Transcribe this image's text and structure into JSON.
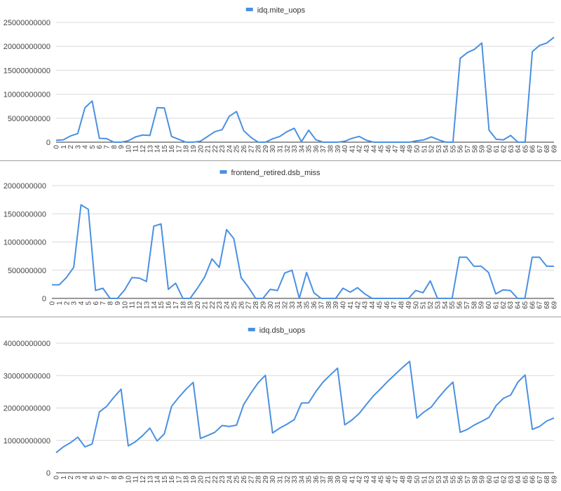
{
  "chart_data": [
    {
      "type": "line",
      "x": [
        0,
        1,
        2,
        3,
        4,
        5,
        6,
        7,
        8,
        9,
        10,
        11,
        12,
        13,
        14,
        15,
        16,
        17,
        18,
        19,
        20,
        21,
        22,
        23,
        24,
        25,
        26,
        27,
        28,
        29,
        30,
        31,
        32,
        33,
        34,
        35,
        36,
        37,
        38,
        39,
        40,
        41,
        42,
        43,
        44,
        45,
        46,
        47,
        48,
        49,
        50,
        51,
        52,
        53,
        54,
        55,
        56,
        57,
        58,
        59,
        60,
        61,
        62,
        63,
        64,
        65,
        66,
        67,
        68,
        69
      ],
      "series": [
        {
          "name": "idq.mite_uops",
          "color": "#4a90e2",
          "values": [
            400000000,
            500000000,
            1300000000,
            1800000000,
            7200000000,
            8600000000,
            800000000,
            750000000,
            0,
            0,
            300000000,
            1100000000,
            1500000000,
            1400000000,
            7200000000,
            7150000000,
            1200000000,
            600000000,
            0,
            0,
            200000000,
            1200000000,
            2200000000,
            2600000000,
            5400000000,
            6400000000,
            2400000000,
            1000000000,
            0,
            0,
            700000000,
            1200000000,
            2200000000,
            2900000000,
            100000000,
            2500000000,
            500000000,
            0,
            0,
            0,
            200000000,
            800000000,
            1200000000,
            400000000,
            0,
            0,
            0,
            0,
            0,
            0,
            300000000,
            500000000,
            1100000000,
            500000000,
            0,
            0,
            17500000000,
            18700000000,
            19400000000,
            20700000000,
            2500000000,
            600000000,
            500000000,
            1400000000,
            0,
            0,
            18900000000,
            20200000000,
            20700000000,
            21900000000
          ]
        }
      ],
      "ylim": [
        0,
        25000000000
      ],
      "yticks": [
        "0",
        "5000000000",
        "10000000000",
        "15000000000",
        "20000000000",
        "25000000000"
      ],
      "grid": true,
      "legend": "top"
    },
    {
      "type": "line",
      "x": [
        0,
        1,
        2,
        3,
        4,
        5,
        6,
        7,
        8,
        9,
        10,
        11,
        12,
        13,
        14,
        15,
        16,
        17,
        18,
        19,
        20,
        21,
        22,
        23,
        24,
        25,
        26,
        27,
        28,
        29,
        30,
        31,
        32,
        33,
        34,
        35,
        36,
        37,
        38,
        39,
        40,
        41,
        42,
        43,
        44,
        45,
        46,
        47,
        48,
        49,
        50,
        51,
        52,
        53,
        54,
        55,
        56,
        57,
        58,
        59,
        60,
        61,
        62,
        63,
        64,
        65,
        66,
        67,
        68,
        69
      ],
      "series": [
        {
          "name": "frontend_retired.dsb_miss",
          "color": "#4a90e2",
          "values": [
            240000000,
            240000000,
            370000000,
            550000000,
            1660000000,
            1580000000,
            140000000,
            180000000,
            0,
            0,
            150000000,
            370000000,
            360000000,
            300000000,
            1280000000,
            1320000000,
            160000000,
            270000000,
            0,
            0,
            180000000,
            380000000,
            700000000,
            550000000,
            1220000000,
            1060000000,
            370000000,
            200000000,
            0,
            0,
            160000000,
            140000000,
            450000000,
            500000000,
            0,
            460000000,
            100000000,
            0,
            0,
            0,
            180000000,
            110000000,
            190000000,
            80000000,
            0,
            0,
            0,
            0,
            0,
            0,
            140000000,
            100000000,
            310000000,
            0,
            0,
            0,
            730000000,
            730000000,
            570000000,
            570000000,
            460000000,
            80000000,
            150000000,
            140000000,
            0,
            0,
            730000000,
            730000000,
            570000000,
            570000000
          ]
        }
      ],
      "ylim": [
        0,
        2000000000
      ],
      "yticks": [
        "0",
        "500000000",
        "1000000000",
        "1500000000",
        "2000000000"
      ],
      "grid": true,
      "legend": "top"
    },
    {
      "type": "line",
      "x": [
        0,
        1,
        2,
        3,
        4,
        5,
        6,
        7,
        8,
        9,
        10,
        11,
        12,
        13,
        14,
        15,
        16,
        17,
        18,
        19,
        20,
        21,
        22,
        23,
        24,
        25,
        26,
        27,
        28,
        29,
        30,
        31,
        32,
        33,
        34,
        35,
        36,
        37,
        38,
        39,
        40,
        41,
        42,
        43,
        44,
        45,
        46,
        47,
        48,
        49,
        50,
        51,
        52,
        53,
        54,
        55,
        56,
        57,
        58,
        59,
        60,
        61,
        62,
        63,
        64,
        65,
        66,
        67,
        68,
        69
      ],
      "series": [
        {
          "name": "idq.dsb_uops",
          "color": "#4a90e2",
          "values": [
            6200000000,
            8000000000,
            9300000000,
            11000000000,
            8000000000,
            8900000000,
            18800000000,
            20500000000,
            23300000000,
            25800000000,
            8300000000,
            9600000000,
            11500000000,
            13800000000,
            9800000000,
            12000000000,
            20500000000,
            23300000000,
            25800000000,
            27900000000,
            10600000000,
            11500000000,
            12500000000,
            14600000000,
            14300000000,
            14700000000,
            21100000000,
            24600000000,
            27800000000,
            30100000000,
            12300000000,
            13800000000,
            15000000000,
            16400000000,
            21500000000,
            21600000000,
            25100000000,
            28000000000,
            30200000000,
            32300000000,
            14800000000,
            16300000000,
            18300000000,
            21100000000,
            23800000000,
            26000000000,
            28300000000,
            30400000000,
            32500000000,
            34400000000,
            16900000000,
            18800000000,
            20300000000,
            23200000000,
            25800000000,
            28000000000,
            12500000000,
            13400000000,
            14800000000,
            15900000000,
            17100000000,
            20800000000,
            23000000000,
            24000000000,
            28000000000,
            30200000000,
            13400000000,
            14300000000,
            16000000000,
            16900000000
          ]
        }
      ],
      "ylim": [
        0,
        40000000000
      ],
      "yticks": [
        "0",
        "10000000000",
        "20000000000",
        "30000000000",
        "40000000000"
      ],
      "grid": true,
      "legend": "top"
    }
  ]
}
